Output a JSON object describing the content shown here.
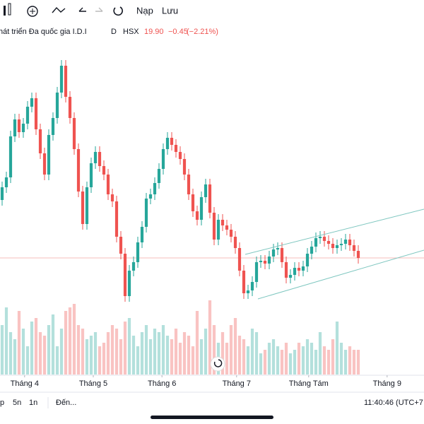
{
  "toolbar": {
    "reload": "Nạp",
    "save": "Lưu"
  },
  "header": {
    "symbol_name": "hát triển Đa quốc gia I.D.I",
    "interval": "D",
    "exchange": "HSX",
    "change": "−0.45",
    "change_percent": "(−2.21%)"
  },
  "bottom_bar": {
    "ranges": [
      "p",
      "5n",
      "1n"
    ],
    "goto": "Đến...",
    "clock": "11:40:46 (UTC+7"
  },
  "chart_data": {
    "type": "candlestick",
    "last_price": {
      "value": 19.9,
      "label": "19.90"
    },
    "up_color": "#26a69a",
    "down_color": "#ef5350",
    "xlim": [
      -0.5,
      99.5
    ],
    "xticks": [
      {
        "value": 5.3,
        "label": "Tháng 4"
      },
      {
        "value": 21.5,
        "label": "Tháng 5"
      },
      {
        "value": 37.7,
        "label": "Tháng 6"
      },
      {
        "value": 55.3,
        "label": "Tháng 7"
      },
      {
        "value": 72.3,
        "label": "Tháng Tám"
      },
      {
        "value": 90.8,
        "label": "Tháng 9"
      }
    ],
    "ylim": [
      11.65,
      36.65
    ],
    "volume_lim": [
      0,
      5000
    ],
    "open": [
      24.0,
      24.9,
      25.6,
      28.5,
      29.7,
      28.8,
      29.4,
      30.6,
      31.2,
      29.0,
      27.3,
      25.8,
      28.6,
      29.8,
      31.6,
      33.5,
      31.3,
      29.8,
      27.6,
      24.6,
      22.3,
      24.9,
      26.6,
      27.4,
      26.4,
      25.8,
      24.4,
      23.9,
      21.4,
      20.2,
      17.2,
      19.0,
      19.6,
      21.0,
      22.1,
      24.1,
      24.4,
      25.2,
      26.2,
      27.6,
      28.4,
      27.9,
      27.4,
      26.9,
      25.8,
      24.4,
      23.2,
      22.6,
      24.2,
      25.1,
      23.1,
      21.2,
      22.6,
      22.2,
      21.9,
      21.4,
      20.6,
      19.0,
      17.4,
      17.6,
      18.2,
      19.6,
      19.7,
      19.5,
      20.0,
      20.5,
      20.6,
      19.6,
      18.5,
      18.7,
      19.2,
      19.0,
      19.3,
      20.2,
      20.7,
      21.3,
      21.4,
      21.1,
      20.9,
      20.6,
      20.8,
      20.9,
      21.2,
      20.8,
      20.4
    ],
    "high": [
      25.3,
      26.0,
      28.9,
      30.1,
      30.1,
      29.8,
      31.0,
      31.6,
      31.6,
      29.4,
      27.7,
      29.0,
      30.2,
      32.0,
      33.9,
      33.9,
      31.7,
      30.2,
      28.0,
      25.0,
      25.3,
      27.0,
      27.8,
      27.8,
      26.8,
      26.2,
      24.8,
      24.3,
      21.8,
      20.6,
      19.4,
      20.0,
      21.4,
      22.5,
      24.5,
      24.8,
      25.6,
      26.6,
      28.0,
      28.8,
      28.8,
      28.3,
      27.8,
      27.3,
      26.2,
      24.8,
      23.6,
      24.6,
      25.5,
      25.5,
      23.5,
      23.0,
      23.0,
      22.6,
      22.3,
      21.8,
      21.0,
      19.4,
      18.0,
      18.6,
      20.0,
      20.1,
      20.1,
      20.4,
      20.9,
      21.0,
      21.0,
      20.0,
      19.1,
      19.6,
      19.6,
      19.7,
      20.6,
      21.1,
      21.7,
      21.8,
      21.8,
      21.5,
      21.3,
      21.2,
      21.3,
      21.6,
      21.6,
      21.2,
      20.8
    ],
    "low": [
      23.6,
      24.5,
      25.2,
      28.1,
      28.4,
      28.4,
      29.0,
      30.2,
      28.6,
      26.9,
      25.4,
      25.4,
      28.2,
      29.4,
      31.2,
      30.9,
      29.4,
      27.2,
      24.2,
      21.9,
      21.9,
      24.5,
      26.2,
      26.0,
      25.4,
      24.0,
      23.5,
      21.0,
      19.8,
      16.8,
      16.8,
      18.6,
      19.2,
      20.6,
      21.7,
      23.7,
      24.0,
      24.8,
      25.8,
      27.2,
      27.5,
      27.0,
      26.5,
      25.4,
      24.0,
      22.8,
      22.2,
      22.2,
      23.8,
      22.7,
      20.8,
      20.8,
      21.8,
      21.5,
      21.0,
      20.2,
      18.6,
      17.0,
      17.0,
      17.2,
      17.8,
      19.2,
      19.1,
      19.1,
      19.6,
      20.1,
      19.2,
      18.1,
      18.1,
      18.3,
      18.6,
      18.6,
      18.9,
      19.8,
      20.3,
      20.9,
      20.7,
      20.5,
      20.2,
      20.2,
      20.4,
      20.5,
      20.4,
      20.0,
      19.5
    ],
    "close": [
      24.9,
      25.6,
      28.5,
      29.7,
      28.8,
      29.4,
      30.6,
      31.2,
      29.0,
      27.3,
      25.8,
      28.6,
      29.8,
      31.6,
      33.5,
      31.3,
      29.8,
      27.6,
      24.6,
      22.3,
      24.9,
      26.6,
      27.4,
      26.4,
      25.8,
      24.4,
      23.9,
      21.4,
      20.2,
      17.2,
      19.0,
      19.6,
      21.0,
      22.1,
      24.1,
      24.4,
      25.2,
      26.2,
      27.6,
      28.4,
      27.9,
      27.4,
      26.9,
      25.8,
      24.4,
      23.2,
      22.6,
      24.2,
      25.1,
      23.1,
      21.2,
      22.6,
      22.2,
      21.9,
      21.4,
      20.6,
      19.0,
      17.4,
      17.6,
      18.2,
      19.6,
      19.7,
      19.5,
      20.0,
      20.5,
      20.6,
      19.6,
      18.5,
      18.7,
      19.2,
      19.0,
      19.3,
      20.2,
      20.7,
      21.3,
      21.4,
      21.1,
      20.9,
      20.6,
      20.8,
      20.9,
      21.2,
      20.8,
      20.4,
      19.9
    ],
    "volume": [
      700,
      950,
      600,
      500,
      900,
      650,
      400,
      750,
      800,
      600,
      550,
      700,
      850,
      400,
      650,
      900,
      950,
      1000,
      700,
      650,
      500,
      550,
      600,
      400,
      450,
      600,
      700,
      650,
      500,
      750,
      800,
      550,
      400,
      600,
      700,
      500,
      650,
      600,
      700,
      550,
      500,
      650,
      450,
      600,
      550,
      400,
      900,
      500,
      650,
      1050,
      700,
      450,
      600,
      450,
      700,
      800,
      550,
      500,
      400,
      650,
      600,
      300,
      350,
      450,
      500,
      400,
      350,
      450,
      300,
      350,
      450,
      400,
      500,
      450,
      350,
      600,
      400,
      350,
      500,
      750,
      450,
      350,
      400,
      350,
      350
    ]
  }
}
